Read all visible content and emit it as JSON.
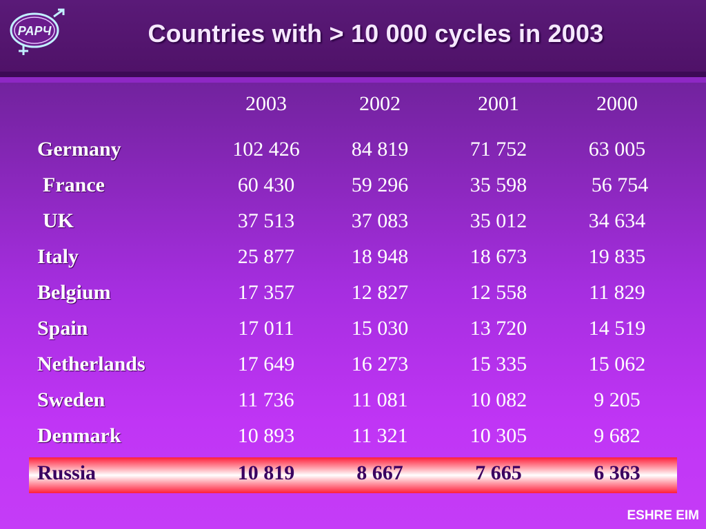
{
  "title": "Countries with > 10 000 cycles in 2003",
  "logo": {
    "text": "РАРЧ",
    "icon": "gender-symbols-logo"
  },
  "table": {
    "years": [
      "2003",
      "2002",
      "2001",
      "2000"
    ],
    "rows": [
      {
        "country": "Germany",
        "values": [
          "102 426",
          "84 819",
          "71 752",
          "63 005"
        ]
      },
      {
        "country": "France",
        "values": [
          "60 430",
          "59 296",
          "35 598",
          "56 754"
        ]
      },
      {
        "country": "UK",
        "values": [
          "37 513",
          "37 083",
          "35 012",
          "34 634"
        ]
      },
      {
        "country": "Italy",
        "values": [
          "25 877",
          "18 948",
          "18 673",
          "19 835"
        ]
      },
      {
        "country": "Belgium",
        "values": [
          "17 357",
          "12 827",
          "12 558",
          "11 829"
        ]
      },
      {
        "country": "Spain",
        "values": [
          "17 011",
          "15 030",
          "13 720",
          "14 519"
        ]
      },
      {
        "country": "Netherlands",
        "values": [
          "17 649",
          "16 273",
          "15 335",
          "15 062"
        ]
      },
      {
        "country": "Sweden",
        "values": [
          "11 736",
          "11 081",
          "10 082",
          "9 205"
        ]
      },
      {
        "country": "Denmark",
        "values": [
          "10 893",
          "11 321",
          "10 305",
          "9 682"
        ]
      },
      {
        "country": "Russia",
        "values": [
          "10 819",
          "8 667",
          "7 665",
          "6 363"
        ]
      }
    ]
  },
  "footer": "ESHRE EIM",
  "colors": {
    "background_top": "#5e1f86",
    "background_bottom": "#c53cf7",
    "highlight_edge": "#ff1f3a",
    "highlight_center": "#ffffff",
    "highlight_text": "#3a0060"
  }
}
